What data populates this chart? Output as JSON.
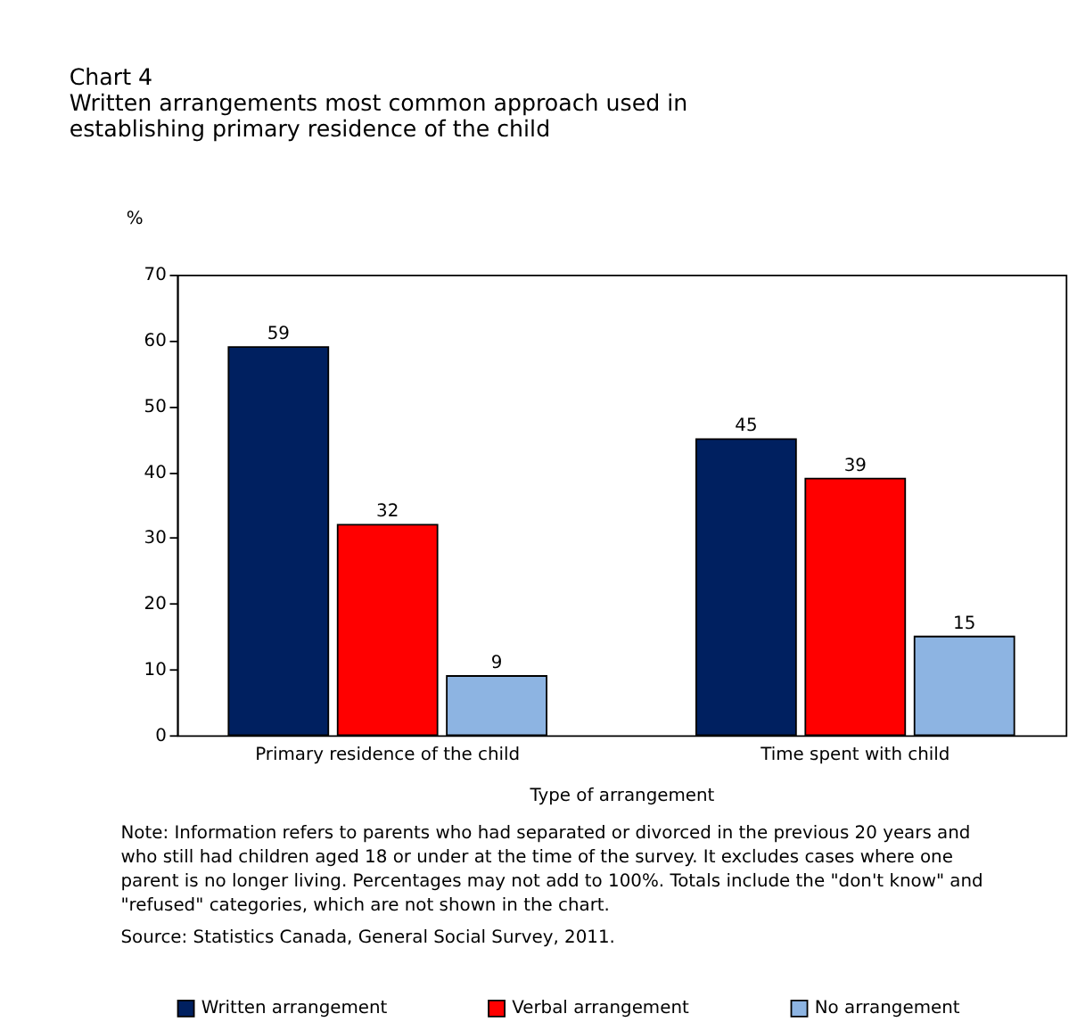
{
  "chart_data": {
    "type": "bar",
    "title": [
      "Chart 4",
      "Written arrangements most common approach used in",
      "establishing primary residence of the child"
    ],
    "xlabel": "Type of arrangement",
    "ylabel": "%",
    "categories": [
      "Primary residence of the child",
      "Time spent with child"
    ],
    "series": [
      {
        "name": "Written arrangement",
        "color": "#002060",
        "values": [
          59,
          45
        ]
      },
      {
        "name": "Verbal arrangement",
        "color": "#ff0000",
        "values": [
          32,
          39
        ]
      },
      {
        "name": "No arrangement",
        "color": "#8db4e2",
        "values": [
          9,
          15
        ]
      }
    ],
    "ylim": [
      0,
      70
    ],
    "yticks": [
      0,
      10,
      20,
      30,
      40,
      50,
      60,
      70
    ],
    "grid": false,
    "legend": "bottom",
    "data_labels": true,
    "annotations": [
      "Note: Information refers to parents who had separated or divorced in the previous 20 years and who still had children aged 18 or under at the time of the survey. It excludes cases where one parent is no longer living. Percentages may not add to 100%. Totals include the \"don't know\" and \"refused\" categories, which are not shown in the chart.",
      "Source: Statistics Canada, General Social Survey, 2011."
    ]
  }
}
